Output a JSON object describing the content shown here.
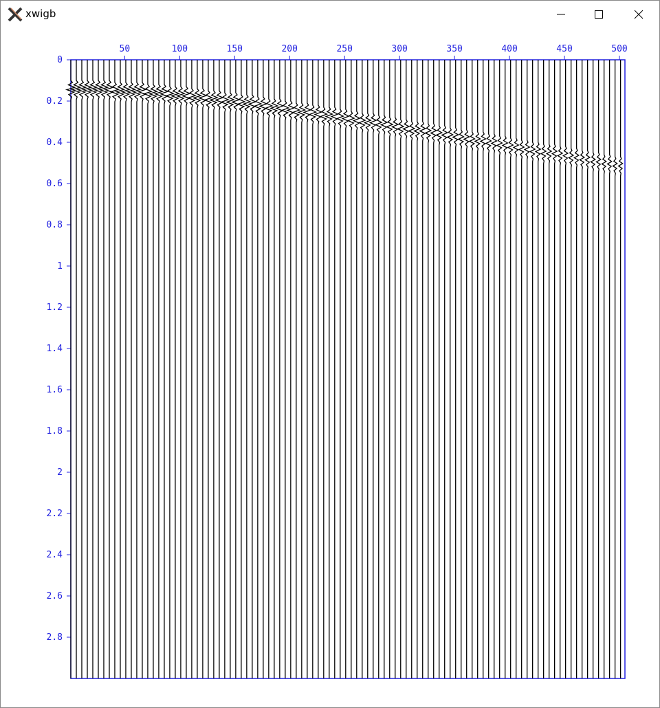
{
  "window": {
    "title": "xwigb"
  },
  "chart_data": {
    "type": "wiggle",
    "color": "#000000",
    "axis_color": "#2020e0",
    "x": [
      1,
      6,
      11,
      16,
      21,
      26,
      31,
      36,
      41,
      46,
      51,
      56,
      61,
      66,
      71,
      76,
      81,
      86,
      91,
      96,
      101,
      106,
      111,
      116,
      121,
      126,
      131,
      136,
      141,
      146,
      151,
      156,
      161,
      166,
      171,
      176,
      181,
      186,
      191,
      196,
      201,
      206,
      211,
      216,
      221,
      226,
      231,
      236,
      241,
      246,
      251,
      256,
      261,
      266,
      271,
      276,
      281,
      286,
      291,
      296,
      301,
      306,
      311,
      316,
      321,
      326,
      331,
      336,
      341,
      346,
      351,
      356,
      361,
      366,
      371,
      376,
      381,
      386,
      391,
      396,
      401,
      406,
      411,
      416,
      421,
      426,
      431,
      436,
      441,
      446,
      451,
      456,
      461,
      466,
      471,
      476,
      481,
      486,
      491,
      496,
      501
    ],
    "values": [
      0.14,
      0.14,
      0.14,
      0.14,
      0.14,
      0.14,
      0.14,
      0.14,
      0.15,
      0.15,
      0.15,
      0.15,
      0.15,
      0.15,
      0.16,
      0.16,
      0.16,
      0.16,
      0.17,
      0.17,
      0.17,
      0.17,
      0.18,
      0.18,
      0.18,
      0.19,
      0.19,
      0.19,
      0.2,
      0.2,
      0.2,
      0.21,
      0.21,
      0.21,
      0.22,
      0.22,
      0.23,
      0.23,
      0.23,
      0.24,
      0.24,
      0.25,
      0.25,
      0.25,
      0.26,
      0.26,
      0.27,
      0.27,
      0.27,
      0.28,
      0.28,
      0.29,
      0.29,
      0.3,
      0.3,
      0.3,
      0.31,
      0.31,
      0.32,
      0.32,
      0.33,
      0.33,
      0.34,
      0.34,
      0.34,
      0.35,
      0.35,
      0.36,
      0.36,
      0.37,
      0.37,
      0.38,
      0.38,
      0.39,
      0.39,
      0.39,
      0.4,
      0.4,
      0.41,
      0.41,
      0.42,
      0.42,
      0.43,
      0.43,
      0.44,
      0.44,
      0.45,
      0.45,
      0.45,
      0.46,
      0.46,
      0.47,
      0.47,
      0.48,
      0.48,
      0.49,
      0.49,
      0.5,
      0.5,
      0.51,
      0.51
    ],
    "xlim": [
      1,
      505
    ],
    "ylim": [
      0,
      3
    ],
    "xticks": [
      50,
      100,
      150,
      200,
      250,
      300,
      350,
      400,
      450,
      500
    ],
    "yticks": [
      0,
      0.2,
      0.4,
      0.6,
      0.8,
      1,
      1.2,
      1.4,
      1.6,
      1.8,
      2,
      2.2,
      2.4,
      2.6,
      2.8
    ]
  }
}
